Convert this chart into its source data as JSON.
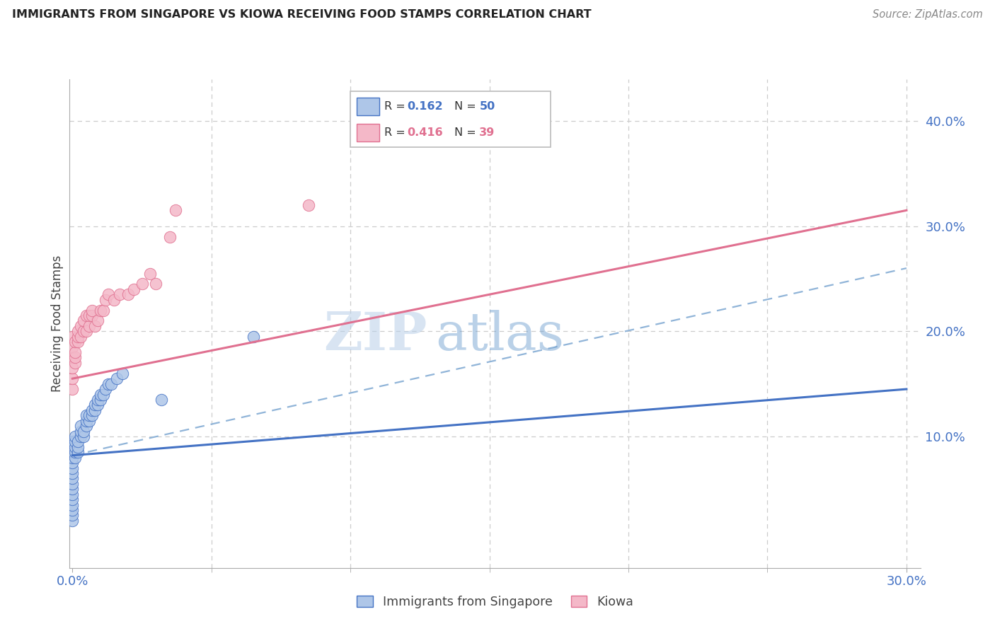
{
  "title": "IMMIGRANTS FROM SINGAPORE VS KIOWA RECEIVING FOOD STAMPS CORRELATION CHART",
  "source": "Source: ZipAtlas.com",
  "ylabel": "Receiving Food Stamps",
  "xlim": [
    -0.001,
    0.305
  ],
  "ylim": [
    -0.025,
    0.44
  ],
  "ytick_values": [
    0.1,
    0.2,
    0.3,
    0.4
  ],
  "ytick_labels": [
    "10.0%",
    "20.0%",
    "30.0%",
    "40.0%"
  ],
  "xtick_values": [
    0.0,
    0.3
  ],
  "xtick_labels": [
    "0.0%",
    "30.0%"
  ],
  "grid_xticks": [
    0.05,
    0.1,
    0.15,
    0.2,
    0.25,
    0.3
  ],
  "scatter_blue_x": [
    0.0,
    0.0,
    0.0,
    0.0,
    0.0,
    0.0,
    0.0,
    0.0,
    0.0,
    0.0,
    0.0,
    0.0,
    0.0,
    0.0,
    0.0,
    0.0,
    0.001,
    0.001,
    0.001,
    0.001,
    0.001,
    0.002,
    0.002,
    0.002,
    0.003,
    0.003,
    0.003,
    0.004,
    0.004,
    0.005,
    0.005,
    0.005,
    0.006,
    0.006,
    0.007,
    0.007,
    0.008,
    0.008,
    0.009,
    0.009,
    0.01,
    0.01,
    0.011,
    0.012,
    0.013,
    0.014,
    0.016,
    0.018,
    0.032,
    0.065
  ],
  "scatter_blue_y": [
    0.02,
    0.025,
    0.03,
    0.035,
    0.04,
    0.045,
    0.05,
    0.055,
    0.06,
    0.065,
    0.07,
    0.075,
    0.08,
    0.085,
    0.09,
    0.095,
    0.08,
    0.085,
    0.09,
    0.095,
    0.1,
    0.085,
    0.09,
    0.095,
    0.1,
    0.105,
    0.11,
    0.1,
    0.105,
    0.11,
    0.115,
    0.12,
    0.115,
    0.12,
    0.12,
    0.125,
    0.125,
    0.13,
    0.13,
    0.135,
    0.135,
    0.14,
    0.14,
    0.145,
    0.15,
    0.15,
    0.155,
    0.16,
    0.135,
    0.195
  ],
  "scatter_pink_x": [
    0.0,
    0.0,
    0.0,
    0.0,
    0.0,
    0.0,
    0.001,
    0.001,
    0.001,
    0.001,
    0.002,
    0.002,
    0.002,
    0.003,
    0.003,
    0.004,
    0.004,
    0.005,
    0.005,
    0.006,
    0.006,
    0.007,
    0.007,
    0.008,
    0.009,
    0.01,
    0.011,
    0.012,
    0.013,
    0.015,
    0.017,
    0.02,
    0.022,
    0.025,
    0.028,
    0.03,
    0.035,
    0.037,
    0.085
  ],
  "scatter_pink_y": [
    0.145,
    0.155,
    0.165,
    0.175,
    0.185,
    0.195,
    0.17,
    0.175,
    0.18,
    0.19,
    0.19,
    0.195,
    0.2,
    0.195,
    0.205,
    0.2,
    0.21,
    0.2,
    0.215,
    0.205,
    0.215,
    0.215,
    0.22,
    0.205,
    0.21,
    0.22,
    0.22,
    0.23,
    0.235,
    0.23,
    0.235,
    0.235,
    0.24,
    0.245,
    0.255,
    0.245,
    0.29,
    0.315,
    0.32
  ],
  "scatter_blue_color": "#aec6e8",
  "scatter_blue_edge": "#4472c4",
  "scatter_pink_color": "#f4b8c8",
  "scatter_pink_edge": "#e07090",
  "trend_blue_x0": 0.0,
  "trend_blue_x1": 0.3,
  "trend_blue_y0": 0.082,
  "trend_blue_y1": 0.145,
  "trend_pink_x0": 0.0,
  "trend_pink_x1": 0.3,
  "trend_pink_y0": 0.155,
  "trend_pink_y1": 0.315,
  "trend_dash_x0": 0.0,
  "trend_dash_x1": 0.3,
  "trend_dash_y0": 0.082,
  "trend_dash_y1": 0.26,
  "trend_blue_color": "#4472c4",
  "trend_pink_color": "#e07090",
  "trend_dash_color": "#90b4d8",
  "watermark_line1": "ZIP",
  "watermark_line2": "atlas",
  "bg_color": "#ffffff",
  "grid_color": "#cccccc",
  "tick_label_color": "#4472c4",
  "bottom_label1": "Immigrants from Singapore",
  "bottom_label2": "Kiowa",
  "legend_r1": "0.162",
  "legend_n1": "50",
  "legend_r2": "0.416",
  "legend_n2": "39",
  "legend_color1": "#4472c4",
  "legend_color2": "#e07090",
  "legend_fill1": "#aec6e8",
  "legend_fill2": "#f4b8c8"
}
